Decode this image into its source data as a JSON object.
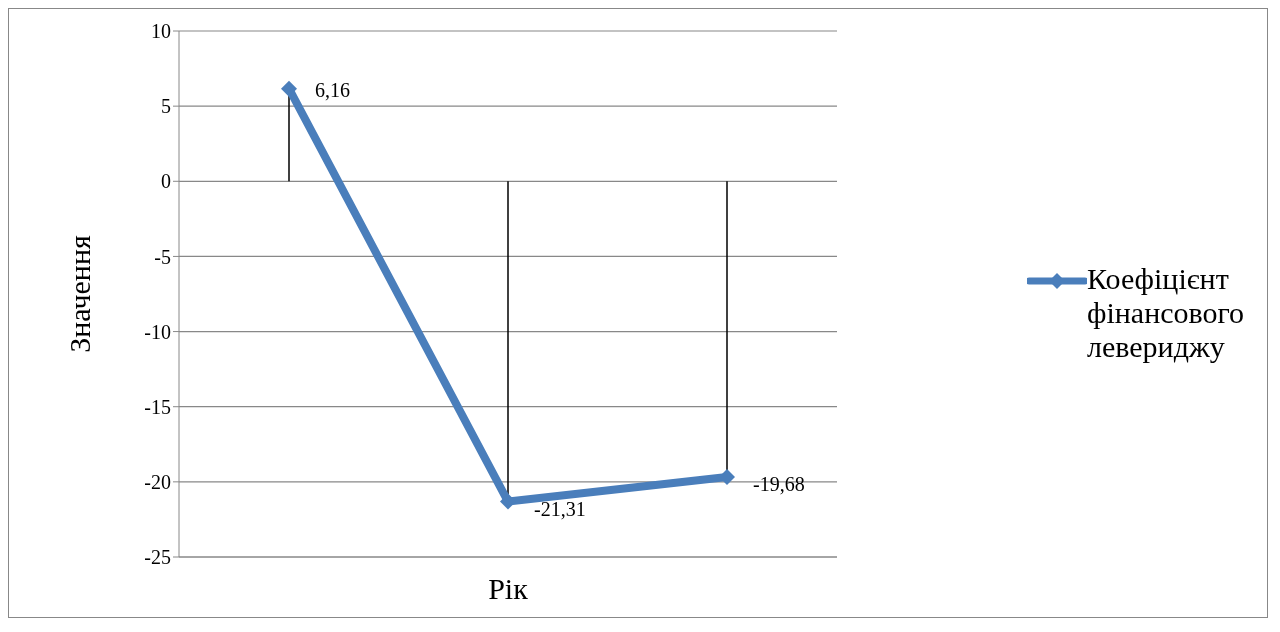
{
  "chart_data": {
    "type": "line",
    "xlabel": "Рік",
    "ylabel": "Значення",
    "categories": [
      null,
      null,
      null
    ],
    "series": [
      {
        "name": "Коефіцієнт фінансового левериджу",
        "color": "#4a7ebb",
        "values": [
          6.16,
          -21.31,
          -19.68
        ],
        "value_labels": [
          "6,16",
          "-21,31",
          "-19,68"
        ],
        "errors": [
          [
            0,
            6.16
          ],
          [
            -21.31,
            0
          ],
          [
            -19.68,
            0
          ]
        ]
      }
    ],
    "ylim": [
      -25,
      10
    ],
    "yticks": [
      -25,
      -20,
      -15,
      -10,
      -5,
      0,
      5,
      10
    ],
    "grid": "y",
    "legend": "right",
    "marker": "diamond",
    "line_style": "solid",
    "tick_labels": "y"
  }
}
